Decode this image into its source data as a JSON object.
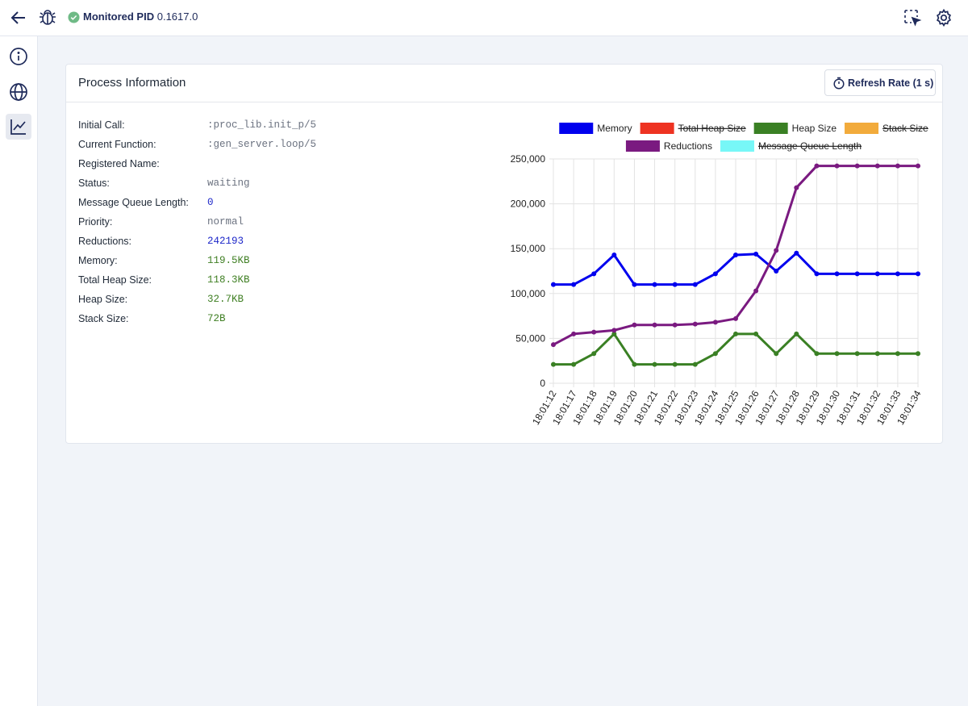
{
  "header": {
    "title": "Monitored PID",
    "pid": "0.1617.0"
  },
  "panel": {
    "title": "Process Information",
    "refresh_button": "Refresh Rate (1 s)",
    "fields": [
      {
        "label": "Initial Call:",
        "value": ":proc_lib.init_p/5",
        "color": "#6b7280"
      },
      {
        "label": "Current Function:",
        "value": ":gen_server.loop/5",
        "color": "#6b7280"
      },
      {
        "label": "Registered Name:"
      },
      {
        "label": "Status:",
        "value": "waiting",
        "color": "#6b7280"
      },
      {
        "label": "Message Queue Length:",
        "value": "0",
        "color": "#1d27c9"
      },
      {
        "label": "Priority:",
        "value": "normal",
        "color": "#6b7280"
      },
      {
        "label": "Reductions:",
        "value": "242193",
        "color": "#1d27c9"
      },
      {
        "label": "Memory:",
        "value": "119.5KB",
        "color": "#3f7f23"
      },
      {
        "label": "Total Heap Size:",
        "value": "118.3KB",
        "color": "#3f7f23"
      },
      {
        "label": "Heap Size:",
        "value": "32.7KB",
        "color": "#3f7f23"
      },
      {
        "label": "Stack Size:",
        "value": "72B",
        "color": "#3f7f23"
      }
    ]
  },
  "chart_data": {
    "type": "line",
    "categories": [
      "18:01:12",
      "18:01:17",
      "18:01:18",
      "18:01:19",
      "18:01:20",
      "18:01:21",
      "18:01:22",
      "18:01:23",
      "18:01:24",
      "18:01:25",
      "18:01:26",
      "18:01:27",
      "18:01:28",
      "18:01:29",
      "18:01:30",
      "18:01:31",
      "18:01:32",
      "18:01:33",
      "18:01:34"
    ],
    "series": [
      {
        "name": "Memory",
        "color": "#0000ee",
        "values": [
          110000,
          110000,
          122000,
          143000,
          110000,
          110000,
          110000,
          110000,
          122000,
          143000,
          144000,
          125000,
          145000,
          122000,
          122000,
          122000,
          122000,
          122000,
          122000
        ]
      },
      {
        "name": "Total Heap Size",
        "color": "#ee3322",
        "hidden": true
      },
      {
        "name": "Heap Size",
        "color": "#3a8024",
        "values": [
          21000,
          21000,
          33000,
          55000,
          21000,
          21000,
          21000,
          21000,
          33000,
          55000,
          55000,
          33000,
          55000,
          33000,
          33000,
          33000,
          33000,
          33000,
          33000
        ]
      },
      {
        "name": "Stack Size",
        "color": "#f2ab3c",
        "hidden": true
      },
      {
        "name": "Reductions",
        "color": "#7a1a80",
        "values": [
          43000,
          55000,
          57000,
          59000,
          65000,
          65000,
          65000,
          66000,
          68000,
          72000,
          103000,
          148000,
          218000,
          242193,
          242193,
          242193,
          242193,
          242193,
          242193
        ]
      },
      {
        "name": "Message Queue Length",
        "color": "#77f7f7",
        "hidden": true
      }
    ],
    "ylim": [
      0,
      250000
    ],
    "yticks": [
      0,
      {
        "value": 50000,
        "label": "50,000"
      },
      {
        "value": 100000,
        "label": "100,000"
      },
      {
        "value": 150000,
        "label": "150,000"
      },
      {
        "value": 200000,
        "label": "200,000"
      },
      {
        "value": 250000,
        "label": "250,000"
      }
    ],
    "grid": true,
    "legend": "top"
  }
}
